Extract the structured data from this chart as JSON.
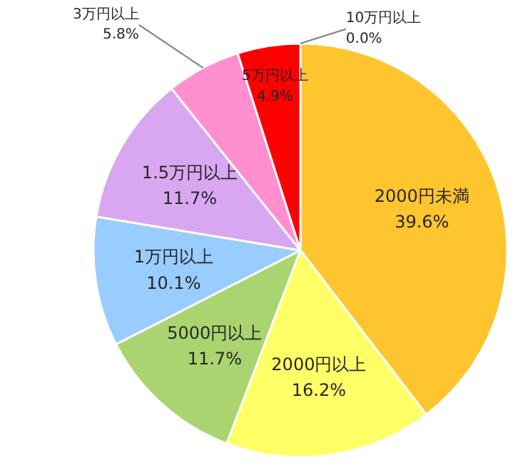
{
  "chart_data": {
    "type": "pie",
    "categories": [
      "2000円未満",
      "2000円以上",
      "5000円以上",
      "1万円以上",
      "1.5万円以上",
      "3万円以上",
      "5万円以上",
      "10万円以上"
    ],
    "values": [
      39.6,
      16.2,
      11.7,
      10.1,
      11.7,
      5.8,
      4.9,
      0.0
    ],
    "colors": [
      "#ffc52e",
      "#ffff66",
      "#a9d46f",
      "#99ccff",
      "#d9a6f2",
      "#ff8fcf",
      "#ff0000",
      "#4f81bd"
    ],
    "value_labels": [
      "39.6%",
      "16.2%",
      "11.7%",
      "10.1%",
      "11.7%",
      "5.8%",
      "4.9%",
      "0.0%"
    ]
  }
}
